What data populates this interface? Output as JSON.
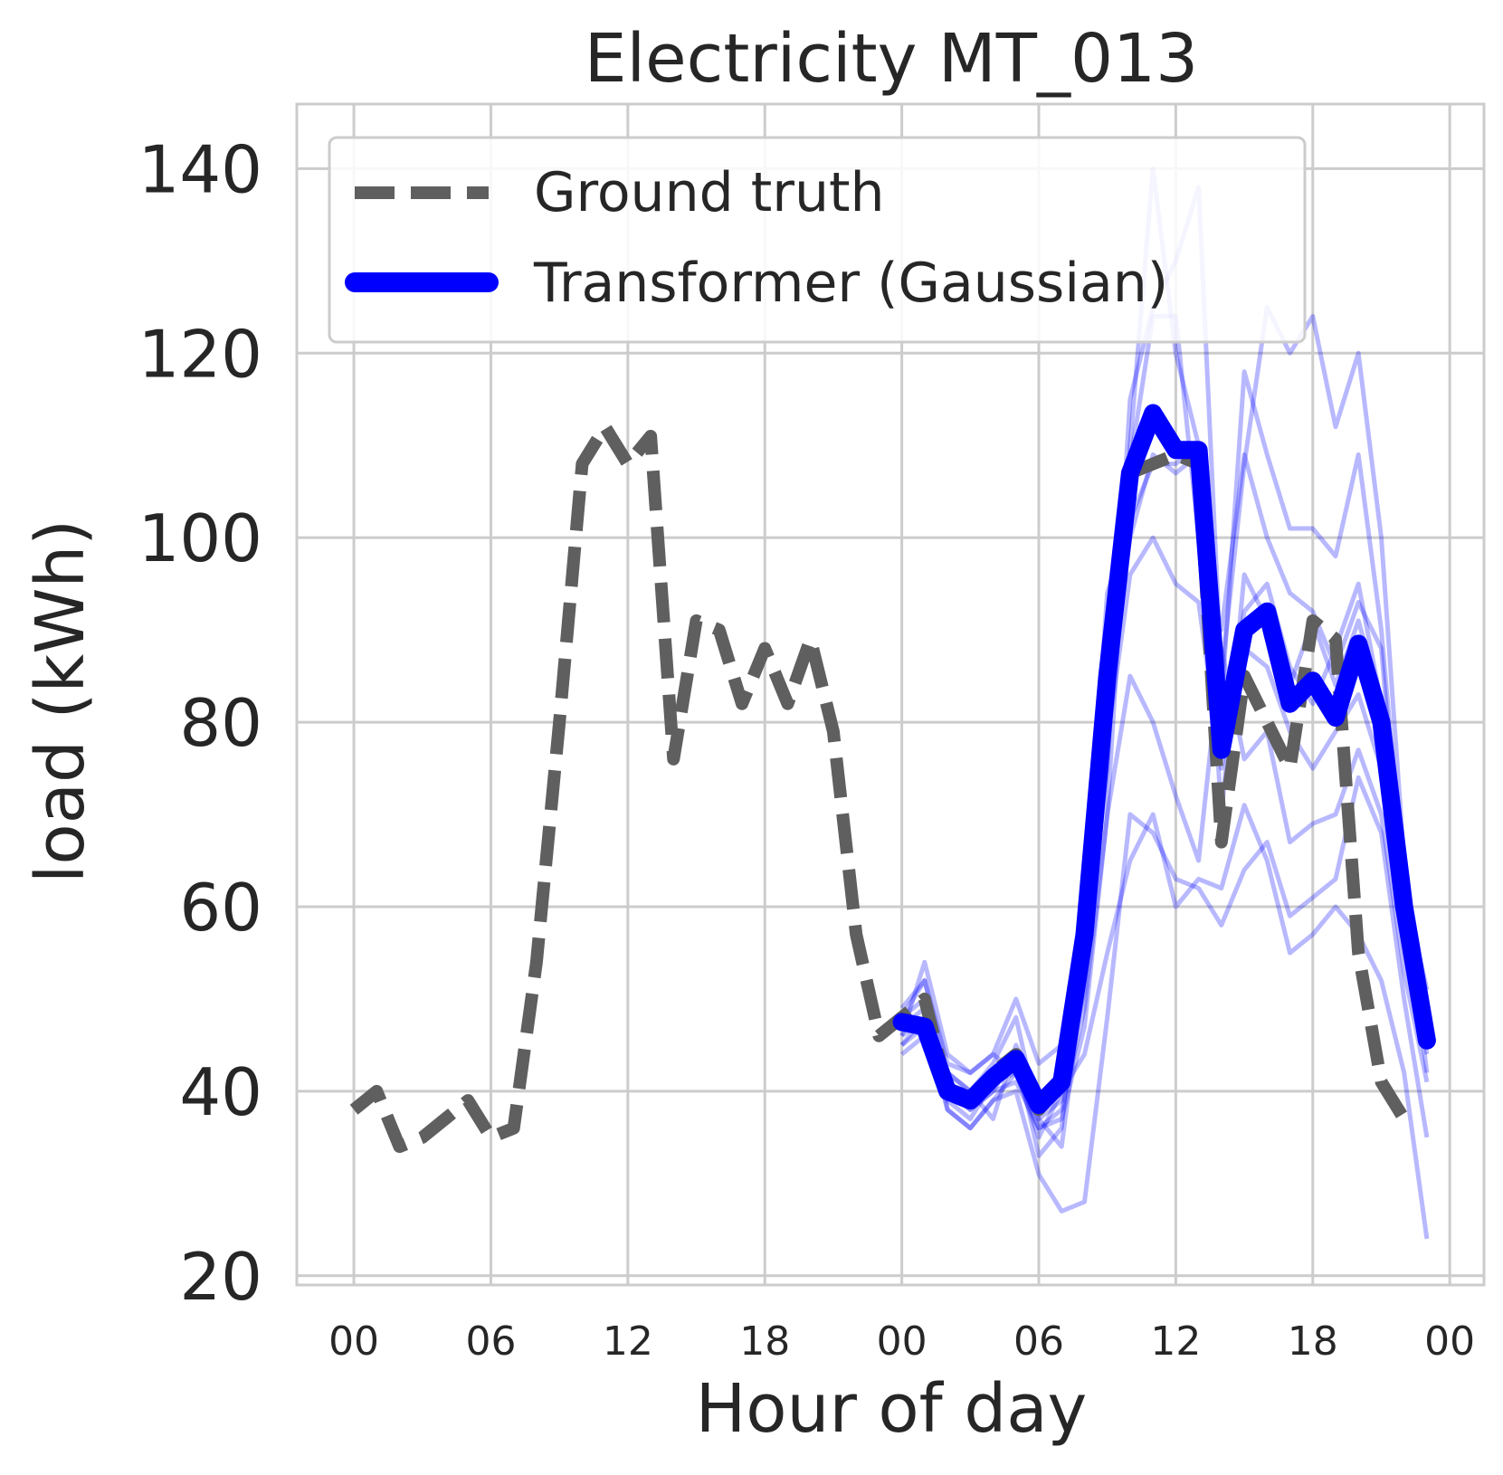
{
  "chart_data": {
    "type": "line",
    "title": "Electricity MT_013",
    "xlabel": "Hour of day",
    "ylabel": "load (kWh)",
    "x_range_hours": [
      -2.5,
      49.5
    ],
    "ylim": [
      19,
      147
    ],
    "yticks": [
      20,
      40,
      60,
      80,
      100,
      120,
      140
    ],
    "xtick_hours": [
      0,
      6,
      12,
      18,
      24,
      30,
      36,
      42,
      48
    ],
    "xtick_labels": [
      "00",
      "06",
      "12",
      "18",
      "00",
      "06",
      "12",
      "18",
      "00"
    ],
    "grid": true,
    "legend": {
      "position": "top-left",
      "entries": [
        "Ground truth",
        "Transformer (Gaussian)"
      ]
    },
    "colors": {
      "ground_truth": "#5f5f5f",
      "forecast": "#0000ff",
      "grid": "#cccccc",
      "text": "#262626"
    },
    "ground_truth": {
      "name": "Ground truth",
      "x_start_hour": 0,
      "values": [
        38,
        40,
        34,
        35,
        37,
        39,
        35,
        36,
        54,
        80,
        108,
        112,
        108,
        111,
        76,
        91,
        90,
        82,
        88,
        82,
        89,
        79,
        57,
        46,
        48,
        50,
        40,
        39,
        42,
        44,
        38,
        41,
        55,
        85,
        107,
        108,
        109,
        108,
        67,
        85,
        80,
        75,
        91,
        89,
        55,
        41,
        37
      ]
    },
    "forecast": {
      "name": "Transformer (Gaussian)",
      "x_start_hour": 24,
      "values": [
        47.5,
        47,
        40,
        39,
        41.5,
        43.5,
        38.5,
        41,
        57,
        85,
        107,
        113.5,
        109.5,
        109.5,
        77,
        90,
        92,
        82,
        84.5,
        80.5,
        88.5,
        80,
        60,
        45.5
      ]
    },
    "samples": {
      "x_start_hour": 24,
      "series": [
        [
          46,
          54,
          44,
          42,
          44,
          50,
          43,
          45,
          52,
          75,
          115,
          125,
          130,
          138,
          85,
          108,
          125,
          120,
          124,
          112,
          120,
          100,
          65,
          45
        ],
        [
          48,
          50,
          38,
          36,
          39,
          42,
          36,
          37,
          47,
          70,
          110,
          140,
          120,
          110,
          82,
          118,
          109,
          101,
          101,
          98,
          109,
          90,
          62,
          42
        ],
        [
          45,
          48,
          42,
          40,
          43,
          48,
          37,
          34,
          53,
          90,
          108,
          124,
          124,
          100,
          90,
          109,
          100,
          94,
          92,
          86,
          93,
          88,
          59,
          48
        ],
        [
          44,
          46,
          40,
          38,
          40,
          44,
          33,
          36,
          60,
          94,
          102,
          108,
          108,
          110,
          78,
          92,
          95,
          86,
          82,
          88,
          95,
          82,
          59,
          47
        ],
        [
          49,
          52,
          42,
          40,
          37,
          45,
          39,
          40,
          55,
          82,
          100,
          109,
          107,
          109,
          70,
          96,
          91,
          84,
          91,
          84,
          91,
          82,
          62,
          51
        ],
        [
          46,
          48,
          39,
          37,
          41,
          42,
          37,
          39,
          51,
          78,
          96,
          100,
          95,
          93,
          75,
          88,
          86,
          79,
          75,
          79,
          83,
          75,
          58,
          44
        ],
        [
          47,
          49,
          40,
          38,
          40,
          41,
          36,
          38,
          49,
          70,
          85,
          80,
          72,
          65,
          88,
          76,
          79,
          67,
          69,
          70,
          77,
          70,
          53,
          41
        ],
        [
          45,
          47,
          38,
          36,
          39,
          40,
          31,
          27,
          28,
          48,
          70,
          68,
          63,
          62,
          58,
          64,
          67,
          59,
          61,
          63,
          74,
          68,
          50,
          35
        ],
        [
          48,
          52,
          43,
          42,
          44,
          42,
          35,
          40,
          44,
          55,
          65,
          70,
          60,
          63,
          62,
          71,
          65,
          55,
          57,
          60,
          57,
          52,
          42,
          24
        ]
      ]
    }
  }
}
